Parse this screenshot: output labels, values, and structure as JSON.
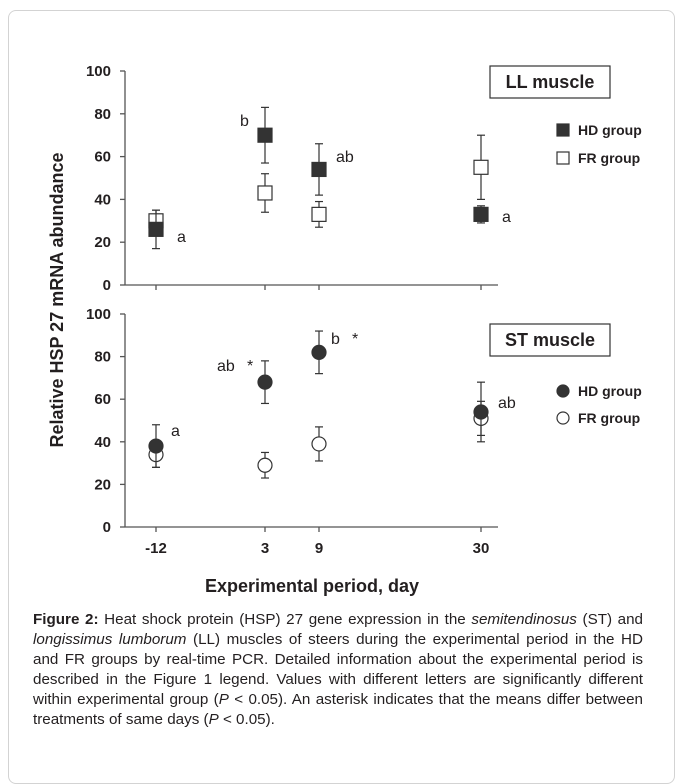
{
  "chart_data": [
    {
      "panel": "LL muscle",
      "type": "scatter",
      "x": [
        -12,
        3,
        9,
        30
      ],
      "x_tick_labels": [
        "-12",
        "3",
        "9",
        "30"
      ],
      "ylim": [
        0,
        100
      ],
      "y_ticks": [
        0,
        20,
        40,
        60,
        80,
        100
      ],
      "series": [
        {
          "name": "HD group",
          "marker": "filled-square",
          "color": "#333333",
          "values": [
            26,
            70,
            54,
            33
          ],
          "error": [
            9,
            13,
            12,
            4
          ],
          "labels": [
            "a",
            "b",
            "ab",
            "a"
          ]
        },
        {
          "name": "FR group",
          "marker": "open-square",
          "color": "#ffffff",
          "values": [
            30,
            43,
            33,
            55
          ],
          "error": [
            5,
            9,
            6,
            15
          ]
        }
      ],
      "legend_position": "right"
    },
    {
      "panel": "ST muscle",
      "type": "scatter",
      "x": [
        -12,
        3,
        9,
        30
      ],
      "x_tick_labels": [
        "-12",
        "3",
        "9",
        "30"
      ],
      "ylim": [
        0,
        100
      ],
      "y_ticks": [
        0,
        20,
        40,
        60,
        80,
        100
      ],
      "series": [
        {
          "name": "HD group",
          "marker": "filled-circle",
          "color": "#333333",
          "values": [
            38,
            68,
            82,
            54
          ],
          "error": [
            10,
            10,
            10,
            14
          ],
          "labels": [
            "a",
            "ab",
            "b",
            "ab"
          ],
          "asterisk": [
            false,
            true,
            true,
            false
          ]
        },
        {
          "name": "FR group",
          "marker": "open-circle",
          "color": "#ffffff",
          "values": [
            34,
            29,
            39,
            51
          ],
          "error": [
            6,
            6,
            8,
            8
          ]
        }
      ],
      "legend_position": "right"
    }
  ],
  "ylabel": "Relative HSP 27 mRNA abundance",
  "xlabel": "Experimental period, day",
  "caption": {
    "label": "Figure 2:",
    "segments": [
      {
        "t": " Heat shock protein (HSP) 27 gene expression in the "
      },
      {
        "t": "semitendinosus",
        "i": true
      },
      {
        "t": " (ST) and "
      },
      {
        "t": "longissimus lumborum",
        "i": true
      },
      {
        "t": " (LL) muscles of steers during the experimental period in the HD and FR groups by real-time PCR. Detailed information about the experimental period is described in the Figure 1 legend. Values with different letters are significantly different within experimental group ("
      },
      {
        "t": "P",
        "i": true
      },
      {
        "t": " < 0.05). An asterisk indicates that the means differ between treatments of same days ("
      },
      {
        "t": "P",
        "i": true
      },
      {
        "t": " < 0.05)."
      }
    ]
  }
}
